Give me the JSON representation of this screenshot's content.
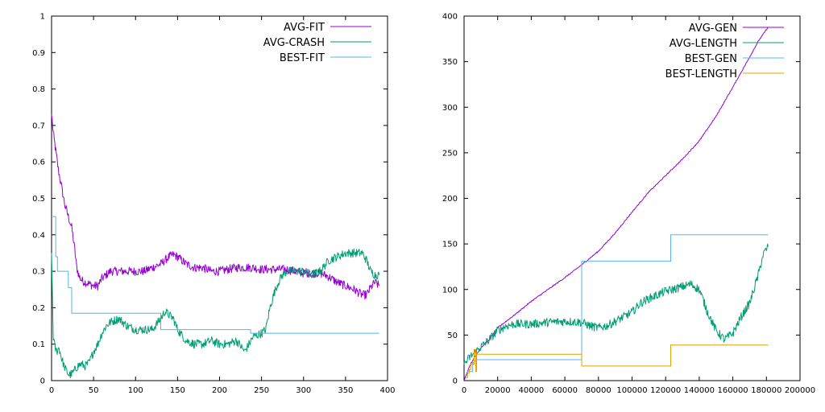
{
  "chart_data": [
    {
      "type": "line",
      "xlim": [
        0,
        400
      ],
      "ylim": [
        0,
        1
      ],
      "x_ticks": [
        "0",
        "50",
        "100",
        "150",
        "200",
        "250",
        "300",
        "350",
        "400"
      ],
      "y_ticks": [
        "0",
        "0.1",
        "0.2",
        "0.3",
        "0.4",
        "0.5",
        "0.6",
        "0.7",
        "0.8",
        "0.9",
        "1"
      ],
      "grid": false,
      "legend": "top-right",
      "series": [
        {
          "name": "AVG-FIT",
          "color": "#9400d3",
          "style": "noisy",
          "x": [
            0,
            2,
            5,
            8,
            12,
            16,
            20,
            24,
            27,
            30,
            33,
            36,
            40,
            45,
            50,
            55,
            60,
            70,
            80,
            90,
            100,
            110,
            120,
            130,
            140,
            145,
            150,
            160,
            170,
            180,
            190,
            200,
            210,
            220,
            230,
            240,
            250,
            260,
            270,
            280,
            290,
            300,
            310,
            320,
            330,
            340,
            350,
            360,
            370,
            375,
            380,
            385,
            390
          ],
          "y": [
            0.73,
            0.68,
            0.63,
            0.58,
            0.53,
            0.48,
            0.45,
            0.42,
            0.37,
            0.31,
            0.285,
            0.275,
            0.27,
            0.265,
            0.26,
            0.26,
            0.28,
            0.3,
            0.3,
            0.3,
            0.3,
            0.3,
            0.31,
            0.32,
            0.34,
            0.345,
            0.34,
            0.32,
            0.31,
            0.31,
            0.3,
            0.3,
            0.305,
            0.31,
            0.31,
            0.31,
            0.305,
            0.305,
            0.305,
            0.305,
            0.3,
            0.295,
            0.295,
            0.295,
            0.285,
            0.27,
            0.26,
            0.25,
            0.235,
            0.235,
            0.255,
            0.27,
            0.26
          ]
        },
        {
          "name": "AVG-CRASH",
          "color": "#009e73",
          "style": "noisy",
          "x": [
            0,
            2,
            4,
            6,
            9,
            12,
            15,
            18,
            21,
            25,
            28,
            31,
            35,
            40,
            45,
            50,
            55,
            60,
            65,
            70,
            80,
            90,
            100,
            110,
            120,
            130,
            135,
            140,
            145,
            150,
            160,
            170,
            180,
            190,
            200,
            210,
            220,
            230,
            240,
            250,
            255,
            260,
            265,
            270,
            275,
            280,
            290,
            300,
            310,
            320,
            330,
            340,
            350,
            360,
            370,
            375,
            380,
            385,
            390
          ],
          "y": [
            0.35,
            0.12,
            0.09,
            0.08,
            0.09,
            0.06,
            0.04,
            0.025,
            0.015,
            0.02,
            0.03,
            0.04,
            0.045,
            0.04,
            0.05,
            0.08,
            0.1,
            0.13,
            0.15,
            0.16,
            0.17,
            0.15,
            0.14,
            0.14,
            0.14,
            0.17,
            0.19,
            0.18,
            0.17,
            0.14,
            0.11,
            0.1,
            0.1,
            0.11,
            0.1,
            0.1,
            0.11,
            0.08,
            0.12,
            0.13,
            0.14,
            0.2,
            0.24,
            0.27,
            0.29,
            0.3,
            0.3,
            0.3,
            0.29,
            0.3,
            0.33,
            0.34,
            0.35,
            0.35,
            0.35,
            0.33,
            0.3,
            0.29,
            0.29
          ]
        },
        {
          "name": "BEST-FIT",
          "color": "#56b4e9",
          "style": "step",
          "x": [
            0,
            3,
            5,
            7,
            10,
            20,
            24,
            26,
            125,
            130,
            230,
            237,
            390
          ],
          "y": [
            0.45,
            0.45,
            0.34,
            0.3,
            0.3,
            0.255,
            0.185,
            0.185,
            0.185,
            0.14,
            0.14,
            0.13,
            0.13
          ]
        }
      ]
    },
    {
      "type": "line",
      "xlim": [
        0,
        200000
      ],
      "ylim": [
        0,
        400
      ],
      "x_ticks": [
        "0",
        "20000",
        "40000",
        "60000",
        "80000",
        "100000",
        "120000",
        "140000",
        "160000",
        "180000",
        "200000"
      ],
      "y_ticks": [
        "0",
        "50",
        "100",
        "150",
        "200",
        "250",
        "300",
        "350",
        "400"
      ],
      "grid": false,
      "legend": "top-right",
      "series": [
        {
          "name": "AVG-GEN",
          "color": "#9400d3",
          "style": "smooth",
          "x": [
            0,
            1000,
            3000,
            6000,
            10000,
            15000,
            20000,
            30000,
            40000,
            50000,
            60000,
            70000,
            80000,
            90000,
            100000,
            110000,
            120000,
            130000,
            140000,
            150000,
            160000,
            170000,
            175000,
            181000
          ],
          "y": [
            0,
            5,
            15,
            25,
            36,
            45,
            58,
            72,
            87,
            100,
            113,
            127,
            142,
            162,
            185,
            207,
            225,
            243,
            263,
            290,
            322,
            355,
            372,
            388
          ]
        },
        {
          "name": "AVG-LENGTH",
          "color": "#009e73",
          "style": "noisy",
          "x": [
            0,
            1000,
            3000,
            6000,
            10000,
            15000,
            20000,
            25000,
            30000,
            40000,
            50000,
            60000,
            70000,
            75000,
            80000,
            85000,
            90000,
            100000,
            105000,
            110000,
            120000,
            130000,
            135000,
            140000,
            145000,
            150000,
            155000,
            160000,
            165000,
            170000,
            175000,
            178000,
            181000
          ],
          "y": [
            18,
            20,
            25,
            30,
            37,
            45,
            55,
            60,
            62,
            62,
            64,
            65,
            64,
            60,
            58,
            60,
            65,
            75,
            85,
            90,
            98,
            103,
            106,
            100,
            75,
            55,
            45,
            52,
            70,
            85,
            115,
            138,
            147
          ]
        },
        {
          "name": "BEST-GEN",
          "color": "#56b4e9",
          "style": "step",
          "x": [
            1000,
            2000,
            3000,
            5000,
            6000,
            7000,
            69000,
            70000,
            122000,
            123000,
            181000
          ],
          "y": [
            5,
            10,
            10,
            20,
            22,
            23,
            23,
            131,
            131,
            160,
            160
          ]
        },
        {
          "name": "BEST-LENGTH",
          "color": "#e69f00",
          "style": "step",
          "x": [
            1000,
            2000,
            3000,
            4000,
            6000,
            7000,
            7500,
            8000,
            69000,
            70000,
            122000,
            123000,
            181000
          ],
          "y": [
            3,
            8,
            12,
            18,
            34,
            10,
            30,
            29,
            29,
            16,
            16,
            39,
            39
          ]
        }
      ]
    }
  ]
}
